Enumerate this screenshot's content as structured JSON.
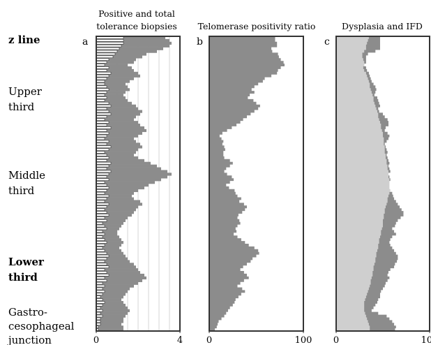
{
  "segments": [
    {
      "label": "z line",
      "bold": true
    },
    {
      "label": "Upper",
      "bold": false
    },
    {
      "label": "third",
      "bold": false
    },
    {
      "label": "Middle",
      "bold": false
    },
    {
      "label": "third",
      "bold": false
    },
    {
      "label": "Lower",
      "bold": true
    },
    {
      "label": "third",
      "bold": true
    },
    {
      "label": "Gastro-",
      "bold": false
    },
    {
      "label": "cesophageal",
      "bold": false
    },
    {
      "label": "junction",
      "bold": false
    }
  ],
  "chart_data": [
    {
      "type": "bar",
      "letter": "a",
      "title_lines": [
        "Positive and total",
        "tolerance biopsies"
      ],
      "xlim": [
        0,
        4
      ],
      "ticks": [
        {
          "value": 0,
          "label": "0"
        },
        {
          "value": 4,
          "label": "4"
        }
      ],
      "grid": true,
      "colors": {
        "total": "#8c8c8c",
        "positive": "#ffffff"
      },
      "series": [
        {
          "values": [
            3.3,
            3.5,
            3.6,
            3.5,
            3.2,
            2.9,
            2.4,
            2.2,
            1.9,
            1.8,
            1.5,
            1.7,
            1.8,
            2.0,
            2.1,
            1.8,
            1.6,
            1.4,
            1.5,
            1.6,
            1.4,
            1.3,
            1.4,
            1.5,
            1.7,
            1.9,
            2.0,
            2.2,
            2.1,
            1.9,
            1.8,
            2.0,
            2.1,
            2.3,
            2.4,
            2.2,
            2.0,
            1.8,
            1.9,
            2.1,
            2.2,
            2.0,
            1.9,
            1.8,
            2.0,
            2.3,
            2.6,
            2.9,
            3.1,
            3.4,
            3.6,
            3.4,
            3.1,
            2.8,
            2.5,
            2.3,
            2.0,
            1.8,
            1.7,
            1.8,
            2.1,
            2.2,
            2.0,
            1.9,
            1.8,
            1.7,
            1.5,
            1.4,
            1.3,
            1.2,
            1.1,
            1.0,
            1.0,
            1.1,
            1.2,
            1.3,
            1.2,
            1.1,
            1.2,
            1.3,
            1.4,
            1.5,
            1.6,
            1.8,
            1.9,
            2.0,
            2.1,
            2.3,
            2.4,
            2.2,
            2.0,
            1.8,
            1.6,
            1.5,
            1.4,
            1.3,
            1.2,
            1.3,
            1.4,
            1.5,
            1.6,
            1.5,
            1.4,
            1.3,
            1.3,
            1.2,
            1.3,
            1.3
          ]
        },
        {
          "values": [
            1.3,
            1.3,
            1.3,
            1.2,
            1.1,
            1.0,
            0.9,
            0.8,
            0.6,
            0.5,
            0.4,
            0.6,
            0.5,
            0.7,
            0.6,
            0.5,
            0.4,
            0.4,
            0.5,
            0.6,
            0.5,
            0.4,
            0.5,
            0.4,
            0.6,
            0.7,
            0.5,
            0.6,
            0.7,
            0.5,
            0.4,
            0.6,
            0.5,
            0.7,
            0.5,
            0.6,
            0.5,
            0.4,
            0.6,
            0.5,
            0.7,
            0.6,
            0.4,
            0.5,
            0.6,
            0.5,
            0.7,
            0.6,
            0.5,
            0.7,
            0.6,
            0.5,
            0.6,
            0.4,
            0.5,
            0.6,
            0.5,
            0.4,
            0.6,
            0.5,
            0.4,
            0.6,
            0.5,
            0.4,
            0.5,
            0.6,
            0.4,
            0.5,
            0.3,
            0.4,
            0.5,
            0.3,
            0.4,
            0.3,
            0.4,
            0.5,
            0.4,
            0.3,
            0.4,
            0.5,
            0.6,
            0.5,
            0.4,
            0.5,
            0.6,
            0.4,
            0.5,
            0.6,
            0.4,
            0.5,
            0.3,
            0.4,
            0.3,
            0.4,
            0.3,
            0.2,
            0.3,
            0.4,
            0.3,
            0.2,
            0.3,
            0.2,
            0.3,
            0.2,
            0.2,
            0.2,
            0.1,
            0.1
          ]
        }
      ]
    },
    {
      "type": "area",
      "letter": "b",
      "title_lines": [
        "Telomerase positivity ratio"
      ],
      "xlim": [
        0,
        100
      ],
      "ticks": [
        {
          "value": 0,
          "label": "0"
        },
        {
          "value": 100,
          "label": "100"
        }
      ],
      "grid": false,
      "colors": {
        "fill": "#8c8c8c"
      },
      "series": [
        {
          "values": [
            70,
            70,
            72,
            72,
            66,
            67,
            73,
            74,
            76,
            79,
            80,
            76,
            73,
            72,
            66,
            59,
            57,
            52,
            48,
            45,
            48,
            43,
            41,
            47,
            50,
            54,
            52,
            48,
            44,
            40,
            36,
            33,
            29,
            24,
            19,
            14,
            11,
            13,
            15,
            14,
            16,
            17,
            15,
            15,
            16,
            22,
            25,
            22,
            18,
            16,
            19,
            24,
            26,
            22,
            18,
            21,
            27,
            28,
            30,
            34,
            32,
            37,
            40,
            38,
            35,
            31,
            30,
            32,
            33,
            30,
            28,
            29,
            26,
            30,
            34,
            38,
            42,
            48,
            52,
            53,
            50,
            46,
            44,
            40,
            36,
            33,
            37,
            40,
            42,
            37,
            33,
            30,
            35,
            38,
            34,
            31,
            28,
            27,
            25,
            22,
            20,
            18,
            16,
            13,
            10,
            9,
            8,
            6
          ]
        }
      ]
    },
    {
      "type": "area",
      "letter": "c",
      "title_lines": [
        "Dysplasia and IFD"
      ],
      "xlim": [
        0,
        100
      ],
      "ticks": [
        {
          "value": 0,
          "label": "0"
        },
        {
          "value": 100,
          "label": "100"
        }
      ],
      "grid": false,
      "colors": {
        "dysplasia": "#8c8c8c",
        "ifd": "#cfcfcf"
      },
      "series": [
        {
          "values": [
            47,
            47,
            47,
            47,
            47,
            42,
            34,
            32,
            32,
            32,
            30,
            32,
            33,
            35,
            36,
            37,
            38,
            40,
            42,
            43,
            42,
            41,
            44,
            45,
            46,
            47,
            45,
            46,
            50,
            52,
            55,
            56,
            56,
            53,
            52,
            55,
            57,
            56,
            54,
            52,
            53,
            54,
            55,
            54,
            55,
            56,
            57,
            56,
            57,
            58,
            56,
            57,
            58,
            56,
            55,
            56,
            57,
            60,
            61,
            62,
            64,
            66,
            68,
            70,
            72,
            72,
            69,
            66,
            64,
            63,
            60,
            62,
            64,
            60,
            58,
            57,
            58,
            60,
            62,
            64,
            66,
            66,
            65,
            63,
            62,
            58,
            56,
            55,
            57,
            55,
            53,
            52,
            50,
            48,
            47,
            47,
            45,
            44,
            42,
            40,
            38,
            45,
            54,
            57,
            60,
            62,
            64,
            63
          ]
        },
        {
          "values": [
            35,
            34,
            33,
            32,
            32,
            30,
            28,
            28,
            29,
            30,
            30,
            29,
            30,
            32,
            33,
            34,
            35,
            36,
            36,
            37,
            38,
            39,
            40,
            40,
            41,
            42,
            43,
            44,
            45,
            45,
            46,
            47,
            48,
            48,
            49,
            50,
            50,
            51,
            51,
            51,
            52,
            52,
            52,
            53,
            53,
            54,
            54,
            55,
            55,
            56,
            56,
            56,
            57,
            57,
            57,
            57,
            58,
            57,
            56,
            55,
            55,
            54,
            53,
            52,
            52,
            51,
            51,
            50,
            50,
            50,
            49,
            48,
            48,
            47,
            46,
            46,
            45,
            45,
            44,
            43,
            43,
            42,
            42,
            41,
            40,
            40,
            39,
            39,
            38,
            37,
            37,
            36,
            35,
            34,
            33,
            32,
            31,
            30,
            30,
            30,
            30,
            31,
            32,
            33,
            34,
            35,
            36,
            36
          ]
        }
      ]
    }
  ]
}
